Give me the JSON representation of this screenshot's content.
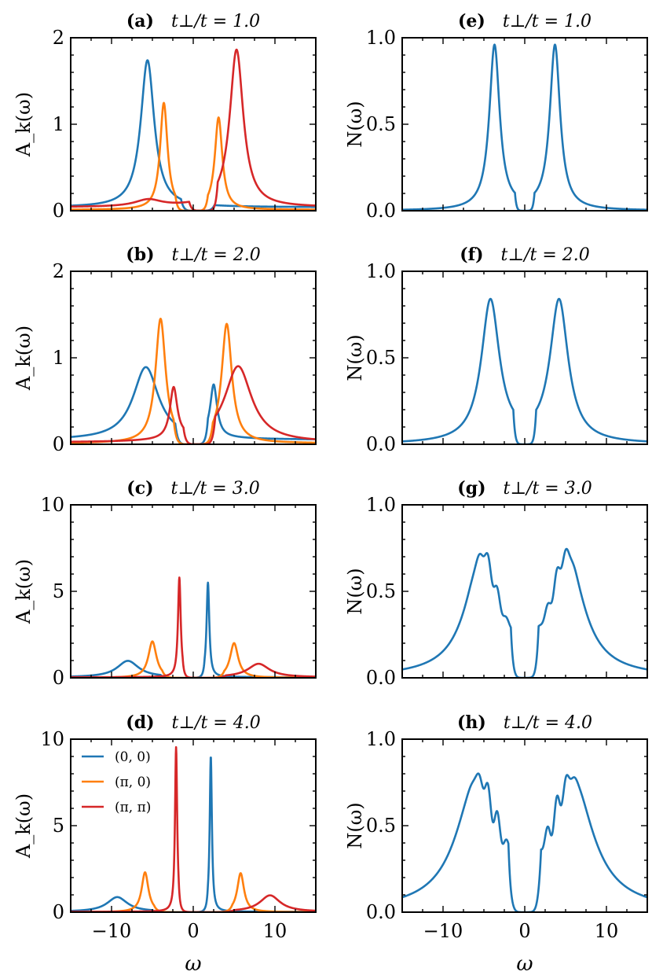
{
  "colors": {
    "k00": "#1f77b4",
    "kpi0": "#ff7f0e",
    "kpipi": "#d62728"
  },
  "chart_data": [
    {
      "id": "a",
      "type": "line",
      "panel_label": "(a)",
      "param_label": "t⊥/t = 1.0",
      "tperp": 1.0,
      "xlabel": "",
      "ylabel": "A_k(ω)",
      "xlim": [
        -15,
        15
      ],
      "ylim": [
        0,
        2
      ],
      "yticks": [
        0,
        1,
        2
      ],
      "ytick_labels": [
        "0",
        "1",
        "2"
      ],
      "series": [
        {
          "key": "k00",
          "peaks": [
            [
              -5.6,
              1.7,
              1.0
            ]
          ],
          "baseline": 0.04,
          "gap": [
            -1.5,
            2.6
          ]
        },
        {
          "key": "kpi0",
          "peaks": [
            [
              -3.6,
              1.23,
              0.55
            ],
            [
              3.1,
              1.06,
              0.55
            ]
          ],
          "baseline": 0.01,
          "gap": [
            -2.2,
            1.8
          ]
        },
        {
          "key": "kpipi",
          "peaks": [
            [
              5.3,
              1.82,
              1.0
            ],
            [
              -5.5,
              0.08,
              2.0
            ]
          ],
          "baseline": 0.04,
          "gap": [
            -0.5,
            3.0
          ]
        }
      ]
    },
    {
      "id": "b",
      "type": "line",
      "panel_label": "(b)",
      "param_label": "t⊥/t = 2.0",
      "tperp": 2.0,
      "xlabel": "",
      "ylabel": "A_k(ω)",
      "xlim": [
        -15,
        15
      ],
      "ylim": [
        0,
        2
      ],
      "yticks": [
        0,
        1,
        2
      ],
      "ytick_labels": [
        "0",
        "1",
        "2"
      ],
      "series": [
        {
          "key": "k00",
          "peaks": [
            [
              -5.8,
              0.84,
              1.9
            ],
            [
              2.5,
              0.6,
              0.5
            ]
          ],
          "baseline": 0.05,
          "gap": [
            -2.2,
            1.8
          ]
        },
        {
          "key": "kpi0",
          "peaks": [
            [
              -4.0,
              1.43,
              0.75
            ],
            [
              4.1,
              1.37,
              0.75
            ]
          ],
          "baseline": 0.01,
          "gap": [
            -2.4,
            2.4
          ]
        },
        {
          "key": "kpipi",
          "peaks": [
            [
              -2.4,
              0.59,
              0.55
            ],
            [
              5.5,
              0.88,
              2.0
            ]
          ],
          "baseline": 0.02,
          "gap": [
            -1.2,
            2.7
          ]
        }
      ]
    },
    {
      "id": "c",
      "type": "line",
      "panel_label": "(c)",
      "param_label": "t⊥/t = 3.0",
      "tperp": 3.0,
      "xlabel": "",
      "ylabel": "A_k(ω)",
      "xlim": [
        -15,
        15
      ],
      "ylim": [
        0,
        10
      ],
      "yticks": [
        0,
        5,
        10
      ],
      "ytick_labels": [
        "0",
        "5",
        "10"
      ],
      "series": [
        {
          "key": "k00",
          "peaks": [
            [
              -8.0,
              0.95,
              1.6
            ],
            [
              1.8,
              5.45,
              0.2
            ]
          ],
          "baseline": 0.03,
          "gap": [
            -4.0,
            1.4
          ]
        },
        {
          "key": "kpi0",
          "peaks": [
            [
              -5.0,
              2.1,
              0.6
            ],
            [
              5.0,
              2.0,
              0.6
            ]
          ],
          "baseline": 0.0,
          "gap": [
            -3.8,
            3.8
          ]
        },
        {
          "key": "kpipi",
          "peaks": [
            [
              -1.7,
              5.75,
              0.2
            ],
            [
              8.0,
              0.78,
              1.6
            ]
          ],
          "baseline": 0.03,
          "gap": [
            -1.3,
            4.0
          ]
        }
      ]
    },
    {
      "id": "d",
      "type": "line",
      "panel_label": "(d)",
      "param_label": "t⊥/t = 4.0",
      "tperp": 4.0,
      "xlabel": "ω",
      "ylabel": "A_k(ω)",
      "xlim": [
        -15,
        15
      ],
      "ylim": [
        0,
        10
      ],
      "yticks": [
        0,
        5,
        10
      ],
      "ytick_labels": [
        "0",
        "5",
        "10"
      ],
      "xticks": [
        -10,
        0,
        10
      ],
      "xtick_labels": [
        "−10",
        "0",
        "10"
      ],
      "legend": {
        "placement": "upper-left",
        "entries": [
          {
            "key": "k00",
            "label": "(0, 0)"
          },
          {
            "key": "kpi0",
            "label": "(π, 0)"
          },
          {
            "key": "kpipi",
            "label": "(π, π)"
          }
        ]
      },
      "series": [
        {
          "key": "k00",
          "peaks": [
            [
              -9.3,
              0.85,
              1.5
            ],
            [
              2.15,
              9.0,
              0.16
            ]
          ],
          "baseline": 0.02,
          "gap": [
            -5.0,
            1.8
          ]
        },
        {
          "key": "kpi0",
          "peaks": [
            [
              -5.9,
              2.3,
              0.5
            ],
            [
              5.8,
              2.25,
              0.5
            ]
          ],
          "baseline": 0.0,
          "gap": [
            -4.8,
            4.8
          ]
        },
        {
          "key": "kpipi",
          "peaks": [
            [
              -2.1,
              9.5,
              0.16
            ],
            [
              9.4,
              0.95,
              1.5
            ]
          ],
          "baseline": 0.02,
          "gap": [
            -1.8,
            5.0
          ]
        }
      ]
    },
    {
      "id": "e",
      "type": "line",
      "panel_label": "(e)",
      "param_label": "t⊥/t = 1.0",
      "tperp": 1.0,
      "xlabel": "",
      "ylabel": "N(ω)",
      "xlim": [
        -15,
        15
      ],
      "ylim": [
        0,
        1
      ],
      "yticks": [
        0,
        0.5,
        1.0
      ],
      "ytick_labels": [
        "0.0",
        "0.5",
        "1.0"
      ],
      "series": [
        {
          "key": "k00",
          "peaks": [
            [
              -3.7,
              0.95,
              0.85
            ],
            [
              3.7,
              0.95,
              0.85
            ]
          ],
          "tail_scale": 0.9,
          "gap": [
            -1.2,
            1.2
          ],
          "wiggle": 0
        }
      ]
    },
    {
      "id": "f",
      "type": "line",
      "panel_label": "(f)",
      "param_label": "t⊥/t = 2.0",
      "tperp": 2.0,
      "xlabel": "",
      "ylabel": "N(ω)",
      "xlim": [
        -15,
        15
      ],
      "ylim": [
        0,
        1
      ],
      "yticks": [
        0,
        0.5,
        1.0
      ],
      "ytick_labels": [
        "0.0",
        "0.5",
        "1.0"
      ],
      "series": [
        {
          "key": "k00",
          "peaks": [
            [
              -4.2,
              0.82,
              1.35
            ],
            [
              4.2,
              0.82,
              1.35
            ]
          ],
          "tail_scale": 1.0,
          "gap": [
            -1.4,
            1.4
          ],
          "wiggle": 0
        }
      ]
    },
    {
      "id": "g",
      "type": "line",
      "panel_label": "(g)",
      "param_label": "t⊥/t = 3.0",
      "tperp": 3.0,
      "xlabel": "",
      "ylabel": "N(ω)",
      "xlim": [
        -15,
        15
      ],
      "ylim": [
        0,
        1
      ],
      "yticks": [
        0,
        0.5,
        1.0
      ],
      "ytick_labels": [
        "0.0",
        "0.5",
        "1.0"
      ],
      "series": [
        {
          "key": "k00",
          "peaks": [
            [
              -5.2,
              0.69,
              2.4
            ],
            [
              5.2,
              0.69,
              2.4
            ]
          ],
          "tail_scale": 1.0,
          "gap": [
            -1.7,
            1.7
          ],
          "wiggle": 0.08
        }
      ]
    },
    {
      "id": "h",
      "type": "line",
      "panel_label": "(h)",
      "param_label": "t⊥/t = 4.0",
      "tperp": 4.0,
      "xlabel": "ω",
      "ylabel": "N(ω)",
      "xlim": [
        -15,
        15
      ],
      "ylim": [
        0,
        1
      ],
      "yticks": [
        0,
        0.5,
        1.0
      ],
      "ytick_labels": [
        "0.0",
        "0.5",
        "1.0"
      ],
      "xticks": [
        -10,
        0,
        10
      ],
      "xtick_labels": [
        "−10",
        "0",
        "10"
      ],
      "series": [
        {
          "key": "k00",
          "peaks": [
            [
              -5.8,
              0.74,
              3.0
            ],
            [
              5.8,
              0.74,
              3.0
            ]
          ],
          "tail_scale": 1.0,
          "gap": [
            -2.0,
            2.0
          ],
          "wiggle": 0.13
        }
      ]
    }
  ]
}
